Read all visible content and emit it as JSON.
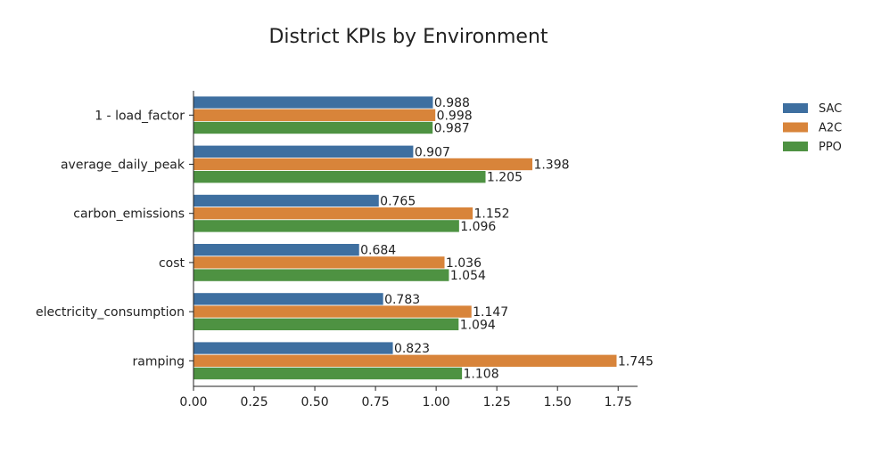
{
  "chart_data": {
    "type": "bar",
    "orientation": "horizontal",
    "title": "District KPIs by Environment",
    "xlabel": "",
    "ylabel": "",
    "xlim": [
      0,
      1.83
    ],
    "xticks": [
      0.0,
      0.25,
      0.5,
      0.75,
      1.0,
      1.25,
      1.5,
      1.75
    ],
    "xtick_labels": [
      "0.00",
      "0.25",
      "0.50",
      "0.75",
      "1.00",
      "1.25",
      "1.50",
      "1.75"
    ],
    "grid": false,
    "legend_position": "top-right",
    "categories": [
      "1 - load_factor",
      "average_daily_peak",
      "carbon_emissions",
      "cost",
      "electricity_consumption",
      "ramping"
    ],
    "series": [
      {
        "name": "SAC",
        "color": "#3e6fa0",
        "values": [
          0.988,
          0.907,
          0.765,
          0.684,
          0.783,
          0.823
        ],
        "labels": [
          "0.988",
          "0.907",
          "0.765",
          "0.684",
          "0.783",
          "0.823"
        ]
      },
      {
        "name": "A2C",
        "color": "#d8843a",
        "values": [
          0.998,
          1.398,
          1.152,
          1.036,
          1.147,
          1.745
        ],
        "labels": [
          "0.998",
          "1.398",
          "1.152",
          "1.036",
          "1.147",
          "1.745"
        ]
      },
      {
        "name": "PPO",
        "color": "#4e9242",
        "values": [
          0.987,
          1.205,
          1.096,
          1.054,
          1.094,
          1.108
        ],
        "labels": [
          "0.987",
          "1.205",
          "1.096",
          "1.054",
          "1.094",
          "1.108"
        ]
      }
    ]
  }
}
